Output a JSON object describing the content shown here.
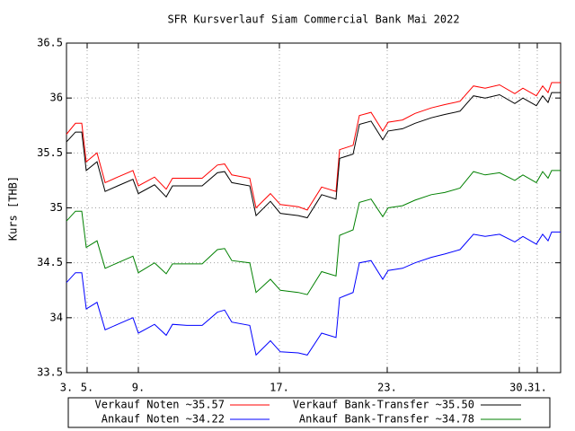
{
  "chart_data": {
    "type": "line",
    "title": "SFR Kursverlauf Siam Commercial Bank Mai 2022",
    "y_label": "Kurs [THB]",
    "x": [
      0,
      2,
      3.4,
      4.4,
      6.8,
      8.6,
      11.4,
      14.8,
      16,
      19.6,
      22.2,
      23.6,
      26.8,
      30.2,
      33.6,
      35.2,
      36.8,
      40.8,
      42.2,
      45.4,
      47.6,
      51.6,
      53.6,
      56.8,
      60,
      60.8,
      63.8,
      65.2,
      67.8,
      70.4,
      71.6,
      74.8,
      77.6,
      81.2,
      84.2,
      87.6,
      90.6,
      93.2,
      96.4,
      99.8,
      101.6,
      104.6,
      106,
      107.2,
      108,
      110
    ],
    "series": [
      {
        "name": "Verkauf Noten ~35.57",
        "color": "#ff0000",
        "values": [
          35.67,
          35.77,
          35.77,
          35.42,
          35.5,
          35.23,
          35.28,
          35.34,
          35.2,
          35.28,
          35.17,
          35.27,
          35.27,
          35.27,
          35.39,
          35.4,
          35.3,
          35.27,
          35.0,
          35.13,
          35.03,
          35.01,
          34.98,
          35.19,
          35.15,
          35.53,
          35.57,
          35.84,
          35.87,
          35.7,
          35.78,
          35.8,
          35.86,
          35.91,
          35.94,
          35.97,
          36.11,
          36.09,
          36.12,
          36.04,
          36.09,
          36.02,
          36.11,
          36.05,
          36.14,
          36.14
        ]
      },
      {
        "name": "Verkauf Bank-Transfer ~35.50",
        "color": "#000000",
        "values": [
          35.6,
          35.69,
          35.69,
          35.34,
          35.42,
          35.15,
          35.2,
          35.26,
          35.13,
          35.21,
          35.1,
          35.2,
          35.2,
          35.2,
          35.32,
          35.33,
          35.23,
          35.2,
          34.93,
          35.06,
          34.95,
          34.93,
          34.91,
          35.12,
          35.08,
          35.45,
          35.49,
          35.76,
          35.79,
          35.62,
          35.7,
          35.72,
          35.77,
          35.82,
          35.85,
          35.88,
          36.02,
          36.0,
          36.03,
          35.95,
          36.0,
          35.93,
          36.02,
          35.96,
          36.05,
          36.05
        ]
      },
      {
        "name": "Ankauf Noten ~34.22",
        "color": "#0000ff",
        "values": [
          34.32,
          34.41,
          34.41,
          34.08,
          34.14,
          33.89,
          33.94,
          34.0,
          33.86,
          33.94,
          33.84,
          33.94,
          33.93,
          33.93,
          34.05,
          34.07,
          33.96,
          33.93,
          33.66,
          33.79,
          33.69,
          33.68,
          33.66,
          33.86,
          33.82,
          34.18,
          34.23,
          34.5,
          34.52,
          34.35,
          34.43,
          34.45,
          34.5,
          34.55,
          34.58,
          34.62,
          34.76,
          34.74,
          34.76,
          34.69,
          34.74,
          34.67,
          34.76,
          34.7,
          34.78,
          34.78
        ]
      },
      {
        "name": "Ankauf Bank-Transfer ~34.78",
        "color": "#008000",
        "values": [
          34.88,
          34.97,
          34.97,
          34.64,
          34.7,
          34.45,
          34.5,
          34.56,
          34.41,
          34.5,
          34.4,
          34.49,
          34.49,
          34.49,
          34.62,
          34.63,
          34.52,
          34.5,
          34.23,
          34.35,
          34.25,
          34.23,
          34.21,
          34.42,
          34.38,
          34.75,
          34.8,
          35.05,
          35.08,
          34.92,
          35.0,
          35.02,
          35.07,
          35.12,
          35.14,
          35.18,
          35.33,
          35.3,
          35.32,
          35.25,
          35.3,
          35.23,
          35.33,
          35.27,
          35.34,
          35.34
        ]
      }
    ],
    "xlim": [
      0,
      110
    ],
    "xticks": [
      {
        "value": 0,
        "label": "3."
      },
      {
        "value": 4.6,
        "label": "5."
      },
      {
        "value": 16,
        "label": "9."
      },
      {
        "value": 47.4,
        "label": "17."
      },
      {
        "value": 71.4,
        "label": "23."
      },
      {
        "value": 100.8,
        "label": "30."
      },
      {
        "value": 104.8,
        "label": "31."
      }
    ],
    "ylim": [
      33.5,
      36.5
    ],
    "yticks": [
      33.5,
      34,
      34.5,
      35,
      35.5,
      36,
      36.5
    ],
    "grid": true
  }
}
